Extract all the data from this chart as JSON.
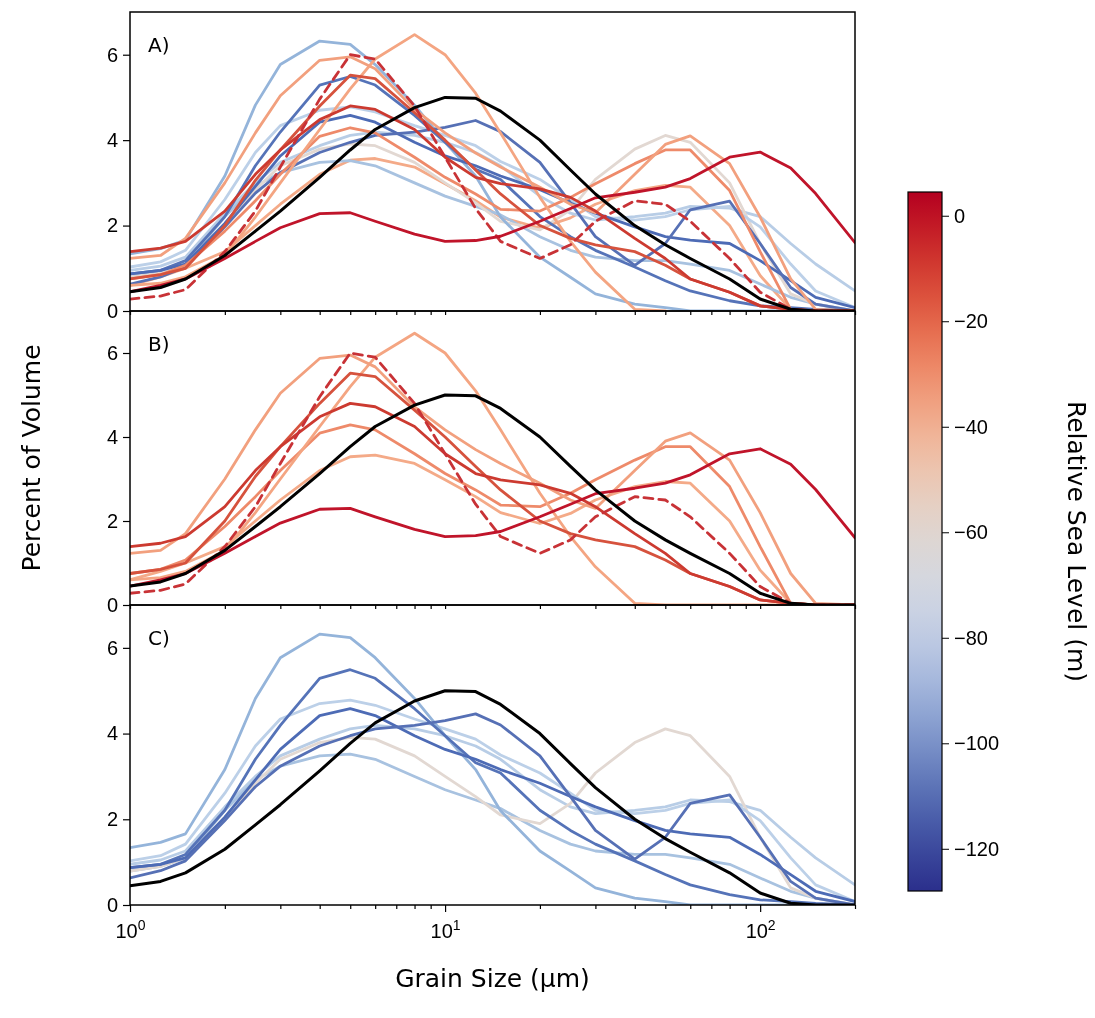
{
  "chart_data": [
    {
      "type": "line",
      "annotations": [
        "A)"
      ],
      "clabel": "Relative Sea Level (m)",
      "clim": [
        -128,
        4.5
      ],
      "cticks": [
        0,
        {
          "value": -20,
          "label": "−20"
        },
        {
          "value": -40,
          "label": "−40"
        },
        {
          "value": -60,
          "label": "−60"
        },
        {
          "value": -80,
          "label": "−80"
        },
        {
          "value": -100,
          "label": "−100"
        },
        {
          "value": -120,
          "label": "−120"
        }
      ],
      "log": "x",
      "xlim": [
        1,
        200
      ],
      "xticks": [
        {
          "value": 1,
          "label": null
        },
        {
          "value": 2,
          "label": null
        },
        {
          "value": 3,
          "label": null
        },
        {
          "value": 4,
          "label": null
        },
        {
          "value": 5,
          "label": null
        },
        {
          "value": 6,
          "label": null
        },
        {
          "value": 7,
          "label": null
        },
        {
          "value": 8,
          "label": null
        },
        {
          "value": 9,
          "label": null
        },
        {
          "value": 10,
          "label": null
        },
        {
          "value": 20,
          "label": null
        },
        {
          "value": 30,
          "label": null
        },
        {
          "value": 40,
          "label": null
        },
        {
          "value": 50,
          "label": null
        },
        {
          "value": 60,
          "label": null
        },
        {
          "value": 70,
          "label": null
        },
        {
          "value": 80,
          "label": null
        },
        {
          "value": 90,
          "label": null
        },
        {
          "value": 100,
          "label": null
        },
        {
          "value": 200,
          "label": null
        }
      ],
      "ylim": [
        0,
        7
      ],
      "yticks": [
        0,
        2,
        4,
        6
      ],
      "tick_labels": "y",
      "grid": false,
      "line_style": "solid",
      "x": [
        1,
        1.25,
        1.5,
        2,
        2.5,
        3,
        4,
        5,
        6,
        8,
        10,
        12.5,
        15,
        20,
        25,
        30,
        40,
        50,
        60,
        80,
        100,
        125,
        150,
        200
      ],
      "series": [
        {
          "color": "#f4aa88",
          "values": [
            0.6,
            0.8,
            1.0,
            1.39,
            2.0,
            2.5,
            3.2,
            3.53,
            3.57,
            3.37,
            2.98,
            2.58,
            2.2,
            1.94,
            2.18,
            2.5,
            2.82,
            2.94,
            2.9,
            2.0,
            0.83,
            0.04,
            0,
            0
          ]
        },
        {
          "color": "#b8cde6",
          "values": [
            0.95,
            1.05,
            1.26,
            2.29,
            3.0,
            3.48,
            3.87,
            4.11,
            4.19,
            4.11,
            3.95,
            3.71,
            3.4,
            2.69,
            2.29,
            2.13,
            2.21,
            2.29,
            2.45,
            2.41,
            2.21,
            1.58,
            1.1,
            0.47
          ]
        },
        {
          "color": "#a8c2e0",
          "values": [
            0.79,
            0.9,
            1.1,
            2.21,
            2.92,
            3.24,
            3.48,
            3.52,
            3.4,
            3.0,
            2.69,
            2.45,
            2.25,
            1.74,
            1.42,
            1.26,
            1.18,
            1.18,
            1.1,
            0.95,
            0.63,
            0.32,
            0.16,
            0
          ]
        },
        {
          "color": "#e2d8d2",
          "values": [
            0.79,
            0.9,
            1.1,
            2.05,
            2.84,
            3.4,
            3.79,
            3.91,
            3.87,
            3.48,
            3.0,
            2.53,
            2.1,
            1.9,
            2.37,
            3.08,
            3.79,
            4.11,
            3.95,
            3.0,
            1.58,
            0.4,
            0.16,
            0
          ]
        },
        {
          "color": "#bcd0e8",
          "values": [
            1.03,
            1.15,
            1.42,
            2.61,
            3.71,
            4.34,
            4.7,
            4.78,
            4.66,
            4.34,
            4.11,
            3.87,
            3.5,
            3.08,
            2.61,
            2.21,
            2.13,
            2.21,
            2.37,
            2.45,
            1.97,
            1.1,
            0.47,
            0.08
          ]
        },
        {
          "color": "#94b4da",
          "values": [
            1.34,
            1.46,
            1.66,
            3.16,
            4.82,
            5.77,
            6.32,
            6.24,
            5.77,
            4.82,
            3.95,
            3.16,
            2.2,
            1.26,
            0.79,
            0.4,
            0.16,
            0.08,
            0,
            0,
            0,
            0,
            0,
            0
          ]
        },
        {
          "color": "#5573b8",
          "values": [
            0.87,
            0.95,
            1.18,
            2.21,
            3.4,
            4.19,
            5.29,
            5.49,
            5.29,
            4.58,
            3.95,
            3.32,
            3.08,
            2.21,
            1.74,
            1.42,
            1.03,
            0.71,
            0.47,
            0.24,
            0.12,
            0.08,
            0.04,
            0
          ]
        },
        {
          "color": "#4d6bb5",
          "values": [
            0.87,
            0.95,
            1.1,
            2.05,
            2.92,
            3.63,
            4.42,
            4.58,
            4.42,
            3.95,
            3.63,
            3.4,
            3.16,
            2.84,
            2.53,
            2.29,
            1.97,
            1.74,
            1.66,
            1.58,
            1.18,
            0.71,
            0.32,
            0.08
          ]
        },
        {
          "color": "#5670b5",
          "values": [
            0.63,
            0.8,
            1.03,
            1.97,
            2.76,
            3.24,
            3.71,
            3.95,
            4.11,
            4.19,
            4.3,
            4.46,
            4.2,
            3.48,
            2.53,
            1.74,
            1.07,
            1.58,
            2.37,
            2.57,
            1.58,
            0.55,
            0.16,
            0
          ]
        },
        {
          "color": "#ee8a6a",
          "values": [
            0.75,
            0.85,
            1.07,
            1.87,
            2.58,
            3.2,
            4.09,
            4.29,
            4.17,
            3.6,
            3.13,
            2.74,
            2.38,
            2.34,
            2.66,
            2.98,
            3.45,
            3.77,
            3.77,
            2.82,
            1.39,
            0.04,
            0,
            0
          ]
        },
        {
          "color": "#f4a582",
          "values": [
            0.6,
            0.65,
            0.8,
            1.3,
            2.2,
            3.0,
            4.25,
            5.2,
            5.9,
            6.47,
            6.0,
            5.1,
            4.17,
            2.66,
            1.63,
            0.91,
            0.04,
            0,
            null,
            null,
            null,
            null,
            null,
            null
          ]
        },
        {
          "color": "#f2a07e",
          "values": [
            1.23,
            1.3,
            1.7,
            3.0,
            4.17,
            5.04,
            5.87,
            5.95,
            5.67,
            4.72,
            4.17,
            3.7,
            3.37,
            2.9,
            2.5,
            2.3,
            3.2,
            3.9,
            4.1,
            3.45,
            2.2,
            0.75,
            0.04,
            0
          ]
        },
        {
          "color": "#d6523d",
          "values": [
            0.75,
            0.85,
            1.0,
            2.0,
            3.06,
            3.77,
            4.8,
            5.52,
            5.44,
            4.64,
            4.0,
            3.3,
            2.74,
            2.0,
            1.7,
            1.55,
            1.39,
            1.07,
            0.75,
            0.44,
            0.12,
            0.04,
            0,
            0
          ]
        },
        {
          "color": "#cc3a30",
          "values": [
            1.39,
            1.47,
            1.63,
            2.34,
            3.2,
            3.77,
            4.48,
            4.8,
            4.72,
            4.25,
            3.6,
            3.13,
            2.98,
            2.86,
            2.66,
            2.34,
            1.7,
            1.23,
            0.75,
            0.44,
            0.12,
            0.04,
            0,
            0
          ]
        },
        {
          "color": "#c83236",
          "line_style": "dashed",
          "values": [
            0.28,
            0.35,
            0.5,
            1.39,
            2.34,
            3.37,
            4.96,
            6.0,
            5.9,
            4.8,
            3.6,
            2.4,
            1.63,
            1.23,
            1.55,
            2.1,
            2.58,
            2.5,
            2.1,
            1.23,
            0.44,
            0.04,
            0,
            0
          ]
        },
        {
          "color": "#c0142a",
          "values": [
            0.45,
            0.6,
            0.75,
            1.23,
            1.63,
            1.95,
            2.28,
            2.3,
            2.1,
            1.8,
            1.63,
            1.65,
            1.75,
            2.1,
            2.4,
            2.65,
            2.78,
            2.9,
            3.1,
            3.6,
            3.72,
            3.35,
            2.75,
            1.6
          ]
        },
        {
          "color": "#000000",
          "values": [
            0.45,
            0.55,
            0.75,
            1.3,
            1.87,
            2.34,
            3.13,
            3.77,
            4.25,
            4.76,
            5.0,
            4.98,
            4.68,
            4.0,
            3.3,
            2.74,
            2.0,
            1.55,
            1.23,
            0.75,
            0.28,
            0.04,
            0,
            0
          ]
        }
      ]
    },
    {
      "type": "line",
      "annotations": [
        "B)"
      ],
      "ylabel": "Percent of Volume",
      "log": "x",
      "xlim": [
        1,
        200
      ],
      "xticks": [
        {
          "value": 1,
          "label": null
        },
        {
          "value": 2,
          "label": null
        },
        {
          "value": 3,
          "label": null
        },
        {
          "value": 4,
          "label": null
        },
        {
          "value": 5,
          "label": null
        },
        {
          "value": 6,
          "label": null
        },
        {
          "value": 7,
          "label": null
        },
        {
          "value": 8,
          "label": null
        },
        {
          "value": 9,
          "label": null
        },
        {
          "value": 10,
          "label": null
        },
        {
          "value": 20,
          "label": null
        },
        {
          "value": 30,
          "label": null
        },
        {
          "value": 40,
          "label": null
        },
        {
          "value": 50,
          "label": null
        },
        {
          "value": 60,
          "label": null
        },
        {
          "value": 70,
          "label": null
        },
        {
          "value": 80,
          "label": null
        },
        {
          "value": 90,
          "label": null
        },
        {
          "value": 100,
          "label": null
        },
        {
          "value": 200,
          "label": null
        }
      ],
      "ylim": [
        0,
        7
      ],
      "yticks": [
        0,
        2,
        4,
        6
      ],
      "tick_labels": "y",
      "grid": false,
      "line_style": "solid",
      "x": [
        1,
        1.25,
        1.5,
        2,
        2.5,
        3,
        4,
        5,
        6,
        8,
        10,
        12.5,
        15,
        20,
        25,
        30,
        40,
        50,
        60,
        80,
        100,
        125,
        150,
        200
      ],
      "series": [
        {
          "color": "#f4aa88",
          "values": [
            0.6,
            0.8,
            1.0,
            1.39,
            2.0,
            2.5,
            3.2,
            3.53,
            3.57,
            3.37,
            2.98,
            2.58,
            2.2,
            1.94,
            2.18,
            2.5,
            2.82,
            2.94,
            2.9,
            2.0,
            0.83,
            0.04,
            0,
            0
          ]
        },
        {
          "color": "#ee8a6a",
          "values": [
            0.75,
            0.85,
            1.07,
            1.87,
            2.58,
            3.2,
            4.09,
            4.29,
            4.17,
            3.6,
            3.13,
            2.74,
            2.38,
            2.34,
            2.66,
            2.98,
            3.45,
            3.77,
            3.77,
            2.82,
            1.39,
            0.04,
            0,
            0
          ]
        },
        {
          "color": "#f4a582",
          "values": [
            0.6,
            0.65,
            0.8,
            1.3,
            2.2,
            3.0,
            4.25,
            5.2,
            5.9,
            6.47,
            6.0,
            5.1,
            4.17,
            2.66,
            1.63,
            0.91,
            0.04,
            0,
            0,
            0,
            0,
            0,
            0,
            0
          ]
        },
        {
          "color": "#f2a07e",
          "values": [
            1.23,
            1.3,
            1.7,
            3.0,
            4.17,
            5.04,
            5.87,
            5.95,
            5.67,
            4.72,
            4.17,
            3.7,
            3.37,
            2.9,
            2.5,
            2.3,
            3.2,
            3.9,
            4.1,
            3.45,
            2.2,
            0.75,
            0.04,
            0
          ]
        },
        {
          "color": "#d6523d",
          "values": [
            0.75,
            0.85,
            1.0,
            2.0,
            3.06,
            3.77,
            4.8,
            5.52,
            5.44,
            4.64,
            4.0,
            3.3,
            2.74,
            2.0,
            1.7,
            1.55,
            1.39,
            1.07,
            0.75,
            0.44,
            0.12,
            0.04,
            0,
            0
          ]
        },
        {
          "color": "#cc3a30",
          "values": [
            1.39,
            1.47,
            1.63,
            2.34,
            3.2,
            3.77,
            4.48,
            4.8,
            4.72,
            4.25,
            3.6,
            3.13,
            2.98,
            2.86,
            2.66,
            2.34,
            1.7,
            1.23,
            0.75,
            0.44,
            0.12,
            0.04,
            0,
            0
          ]
        },
        {
          "color": "#c83236",
          "line_style": "dashed",
          "values": [
            0.28,
            0.35,
            0.5,
            1.39,
            2.34,
            3.37,
            4.96,
            6.0,
            5.9,
            4.8,
            3.6,
            2.4,
            1.63,
            1.23,
            1.55,
            2.1,
            2.58,
            2.5,
            2.1,
            1.23,
            0.44,
            0.04,
            0,
            0
          ]
        },
        {
          "color": "#c0142a",
          "values": [
            0.45,
            0.6,
            0.75,
            1.23,
            1.63,
            1.95,
            2.28,
            2.3,
            2.1,
            1.8,
            1.63,
            1.65,
            1.75,
            2.1,
            2.4,
            2.65,
            2.78,
            2.9,
            3.1,
            3.6,
            3.72,
            3.35,
            2.75,
            1.6
          ]
        },
        {
          "color": "#000000",
          "values": [
            0.45,
            0.55,
            0.75,
            1.3,
            1.87,
            2.34,
            3.13,
            3.77,
            4.25,
            4.76,
            5.0,
            4.98,
            4.68,
            4.0,
            3.3,
            2.74,
            2.0,
            1.55,
            1.23,
            0.75,
            0.28,
            0.04,
            0,
            0
          ]
        }
      ]
    },
    {
      "type": "line",
      "annotations": [
        "C)"
      ],
      "xlabel": "Grain Size (μm)",
      "log": "x",
      "xlim": [
        1,
        200
      ],
      "xticks": [
        {
          "value": 1,
          "label": "10$^{0}$"
        },
        {
          "value": 2,
          "label": null
        },
        {
          "value": 3,
          "label": null
        },
        {
          "value": 4,
          "label": null
        },
        {
          "value": 5,
          "label": null
        },
        {
          "value": 6,
          "label": null
        },
        {
          "value": 7,
          "label": null
        },
        {
          "value": 8,
          "label": null
        },
        {
          "value": 9,
          "label": null
        },
        {
          "value": 10,
          "label": "10$^{1}$"
        },
        {
          "value": 20,
          "label": null
        },
        {
          "value": 30,
          "label": null
        },
        {
          "value": 40,
          "label": null
        },
        {
          "value": 50,
          "label": null
        },
        {
          "value": 60,
          "label": null
        },
        {
          "value": 70,
          "label": null
        },
        {
          "value": 80,
          "label": null
        },
        {
          "value": 90,
          "label": null
        },
        {
          "value": 100,
          "label": "10$^{2}$"
        },
        {
          "value": 200,
          "label": null
        }
      ],
      "ylim": [
        0,
        7
      ],
      "yticks": [
        0,
        2,
        4,
        6
      ],
      "grid": false,
      "line_style": "solid",
      "x": [
        1,
        1.25,
        1.5,
        2,
        2.5,
        3,
        4,
        5,
        6,
        8,
        10,
        12.5,
        15,
        20,
        25,
        30,
        40,
        50,
        60,
        80,
        100,
        125,
        150,
        200
      ],
      "series": [
        {
          "color": "#b8cde6",
          "values": [
            0.95,
            1.05,
            1.26,
            2.29,
            3.0,
            3.48,
            3.87,
            4.11,
            4.19,
            4.11,
            3.95,
            3.71,
            3.4,
            2.69,
            2.29,
            2.13,
            2.21,
            2.29,
            2.45,
            2.41,
            2.21,
            1.58,
            1.1,
            0.47
          ]
        },
        {
          "color": "#a8c2e0",
          "values": [
            0.79,
            0.9,
            1.1,
            2.21,
            2.92,
            3.24,
            3.48,
            3.52,
            3.4,
            3.0,
            2.69,
            2.45,
            2.25,
            1.74,
            1.42,
            1.26,
            1.18,
            1.18,
            1.1,
            0.95,
            0.63,
            0.32,
            0.16,
            0
          ]
        },
        {
          "color": "#e2d8d2",
          "values": [
            0.79,
            0.9,
            1.1,
            2.05,
            2.84,
            3.4,
            3.79,
            3.91,
            3.87,
            3.48,
            3.0,
            2.53,
            2.1,
            1.9,
            2.37,
            3.08,
            3.79,
            4.11,
            3.95,
            3.0,
            1.58,
            0.4,
            0.16,
            0
          ]
        },
        {
          "color": "#bcd0e8",
          "values": [
            1.03,
            1.15,
            1.42,
            2.61,
            3.71,
            4.34,
            4.7,
            4.78,
            4.66,
            4.34,
            4.11,
            3.87,
            3.5,
            3.08,
            2.61,
            2.21,
            2.13,
            2.21,
            2.37,
            2.45,
            1.97,
            1.1,
            0.47,
            0.08
          ]
        },
        {
          "color": "#94b4da",
          "values": [
            1.34,
            1.46,
            1.66,
            3.16,
            4.82,
            5.77,
            6.32,
            6.24,
            5.77,
            4.82,
            3.95,
            3.16,
            2.2,
            1.26,
            0.79,
            0.4,
            0.16,
            0.08,
            0,
            0,
            0,
            0,
            0,
            0
          ]
        },
        {
          "color": "#5573b8",
          "values": [
            0.87,
            0.95,
            1.18,
            2.21,
            3.4,
            4.19,
            5.29,
            5.49,
            5.29,
            4.58,
            3.95,
            3.32,
            3.08,
            2.21,
            1.74,
            1.42,
            1.03,
            0.71,
            0.47,
            0.24,
            0.12,
            0.08,
            0.04,
            0
          ]
        },
        {
          "color": "#4d6bb5",
          "values": [
            0.87,
            0.95,
            1.1,
            2.05,
            2.92,
            3.63,
            4.42,
            4.58,
            4.42,
            3.95,
            3.63,
            3.4,
            3.16,
            2.84,
            2.53,
            2.29,
            1.97,
            1.74,
            1.66,
            1.58,
            1.18,
            0.71,
            0.32,
            0.08
          ]
        },
        {
          "color": "#5670b5",
          "values": [
            0.63,
            0.8,
            1.03,
            1.97,
            2.76,
            3.24,
            3.71,
            3.95,
            4.11,
            4.19,
            4.3,
            4.46,
            4.2,
            3.48,
            2.53,
            1.74,
            1.07,
            1.58,
            2.37,
            2.57,
            1.58,
            0.55,
            0.16,
            0
          ]
        },
        {
          "color": "#000000",
          "values": [
            0.45,
            0.55,
            0.75,
            1.3,
            1.87,
            2.34,
            3.13,
            3.77,
            4.25,
            4.76,
            5.0,
            4.98,
            4.68,
            4.0,
            3.3,
            2.74,
            2.0,
            1.55,
            1.23,
            0.75,
            0.28,
            0.04,
            0,
            0
          ]
        }
      ]
    }
  ]
}
